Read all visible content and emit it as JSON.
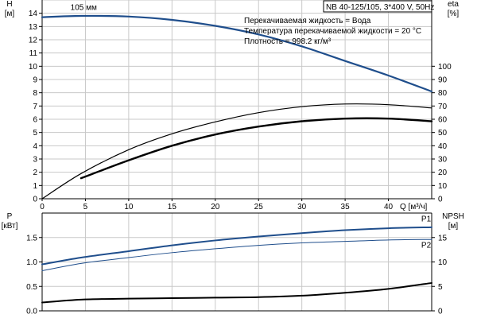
{
  "header": {
    "model": "NB 40-125/105, 3*400 V, 50Hz"
  },
  "info": [
    "Перекачиваемая жидкость = Вода",
    "Температура перекачиваемой жидкости = 20 °C",
    "Плотность = 998.2 кг/м³"
  ],
  "colors": {
    "blue": "#1f4e8c",
    "black": "#000000",
    "grid": "#c8c8c8"
  },
  "chart_data": [
    {
      "type": "line",
      "panel": "top",
      "xlabel": "Q [м³/ч]",
      "ylabel_left": [
        "H",
        "[м]"
      ],
      "ylabel_right": [
        "eta",
        "[%]"
      ],
      "x_ticks": [
        0,
        5,
        10,
        15,
        20,
        25,
        30,
        35,
        40
      ],
      "xlim": [
        0,
        45
      ],
      "ylim_left": [
        0,
        15
      ],
      "y_ticks_left": [
        0,
        1,
        2,
        3,
        4,
        5,
        6,
        7,
        8,
        9,
        10,
        11,
        12,
        13,
        14
      ],
      "ylim_right": [
        0,
        150
      ],
      "y_ticks_right": [
        0,
        10,
        20,
        30,
        40,
        50,
        60,
        70,
        80,
        90,
        100
      ],
      "series": [
        {
          "name": "105 мм",
          "axis": "left",
          "color": "#1f4e8c",
          "width": 2.2,
          "x": [
            0,
            4.5,
            10,
            15,
            20,
            25,
            30,
            35,
            40,
            45
          ],
          "y": [
            13.7,
            13.8,
            13.75,
            13.5,
            13.05,
            12.4,
            11.5,
            10.4,
            9.3,
            8.1
          ]
        },
        {
          "name": "",
          "axis": "right",
          "color": "#000000",
          "width": 1.2,
          "x": [
            0,
            4.5,
            10,
            15,
            20,
            25,
            30,
            35,
            40,
            45
          ],
          "y": [
            0,
            19,
            37,
            49,
            58,
            65,
            69.5,
            71.5,
            71,
            68.5
          ]
        },
        {
          "name": "",
          "axis": "right",
          "color": "#000000",
          "width": 2.4,
          "x": [
            4.5,
            10,
            15,
            20,
            25,
            30,
            35,
            40,
            45
          ],
          "y": [
            15.5,
            29,
            40,
            48.5,
            54.5,
            58.5,
            60.5,
            60.5,
            58.5
          ]
        }
      ]
    },
    {
      "type": "line",
      "panel": "bottom",
      "ylabel_left": [
        "P",
        "[кВт]"
      ],
      "ylabel_right": [
        "NPSH",
        "[м]"
      ],
      "x_ticks": [
        0,
        5,
        10,
        15,
        20,
        25,
        30,
        35,
        40
      ],
      "xlim": [
        0,
        45
      ],
      "ylim_left": [
        0,
        2
      ],
      "y_ticks_left": [
        "0.0",
        "0.5",
        "1.0",
        "1.5"
      ],
      "ylim_right": [
        0,
        20
      ],
      "y_ticks_right": [
        0,
        5,
        10,
        15
      ],
      "series": [
        {
          "name": "P1",
          "axis": "left",
          "color": "#1f4e8c",
          "width": 2.0,
          "x": [
            0,
            4.5,
            10,
            15,
            20,
            25,
            30,
            35,
            40,
            45
          ],
          "y": [
            0.95,
            1.09,
            1.22,
            1.34,
            1.44,
            1.52,
            1.59,
            1.65,
            1.69,
            1.71
          ]
        },
        {
          "name": "P2",
          "axis": "left",
          "color": "#1f4e8c",
          "width": 1.0,
          "x": [
            0,
            4.5,
            10,
            15,
            20,
            25,
            30,
            35,
            40,
            45
          ],
          "y": [
            0.82,
            0.97,
            1.09,
            1.19,
            1.27,
            1.34,
            1.39,
            1.42,
            1.45,
            1.46
          ]
        },
        {
          "name": "",
          "axis": "left",
          "color": "#000000",
          "width": 2.0,
          "x": [
            0,
            4.5,
            10,
            15,
            20,
            25,
            30,
            35,
            40,
            45
          ],
          "y": [
            0.17,
            0.23,
            0.25,
            0.26,
            0.27,
            0.28,
            0.31,
            0.37,
            0.45,
            0.57
          ]
        }
      ]
    }
  ]
}
